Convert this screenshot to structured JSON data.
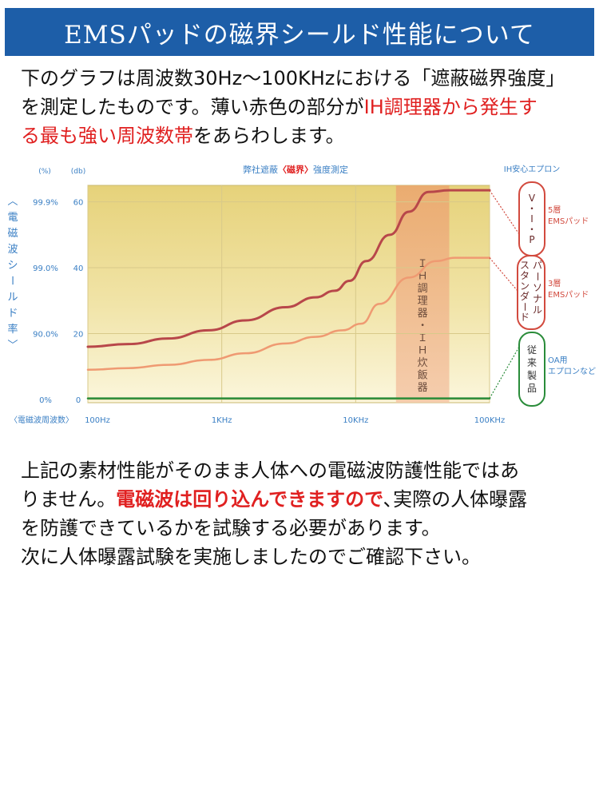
{
  "banner": {
    "title": "EMSパッドの磁界シールド性能について"
  },
  "intro": {
    "line1": "下のグラフは周波数30Hz～100KHzにおける「遮蔽磁界強度」",
    "line2_a": "を測定したものです。薄い赤色の部分が",
    "line2_b": "IH調理器から発生す",
    "line3_a": "る最も強い周波数帯",
    "line3_b": "をあらわします。"
  },
  "outro": {
    "line1": "上記の素材性能がそのまま人体への電磁波防護性能ではあ",
    "line2_a": "りません。",
    "line2_b": "電磁波は回り込んできますので",
    "line2_c": "､実際の人体曝露",
    "line3": "を防護できているかを試験する必要があります。",
    "line4": "次に人体曝露試験を実施しましたのでご確認下さい。"
  },
  "chart_data": {
    "type": "line",
    "title_a": "弊社遮蔽",
    "title_b": "〈磁界〉",
    "title_c": "強度測定",
    "left_axis_unit": "(%)",
    "right_axis_unit": "(db)",
    "ylabel_chars": [
      "〈",
      "電",
      "磁",
      "波",
      "シ",
      "ー",
      "ル",
      "ド",
      "率",
      "〉"
    ],
    "xlabel": "〈電磁波周波数〉",
    "x_ticks": [
      "100Hz",
      "1KHz",
      "10KHz",
      "100KHz"
    ],
    "x_tick_values": [
      100,
      1000,
      10000,
      100000
    ],
    "y_ticks_db": [
      0,
      20,
      40,
      60
    ],
    "y_ticks_pct": [
      "0%",
      "90.0%",
      "99.0%",
      "99.9%"
    ],
    "xlim": [
      100,
      100000
    ],
    "ylim": [
      -1,
      65
    ],
    "band": {
      "label_chars": [
        "Ｉ",
        "Ｈ",
        "調",
        "理",
        "器",
        "・",
        "Ｉ",
        "Ｈ",
        "炊",
        "飯",
        "器"
      ],
      "x_from": 20000,
      "x_to": 50000
    },
    "legend_title": "IH安心エプロン",
    "series": [
      {
        "name": "5層 EMSパッド",
        "badge": "V・I・P",
        "badge_chars": [
          "V",
          "・",
          "I",
          "・",
          "P"
        ],
        "color": "#b8474a",
        "x": [
          100,
          200,
          400,
          800,
          1500,
          3000,
          5000,
          7000,
          9000,
          12000,
          18000,
          25000,
          35000,
          50000,
          100000
        ],
        "values": [
          16,
          16.8,
          18.5,
          21,
          24,
          28,
          31,
          33,
          36,
          42,
          50,
          57,
          63,
          63.5,
          63.5
        ]
      },
      {
        "name": "3層 EMSパッド",
        "badge": "パーソナルスタンダード",
        "badge_col1": [
          "パ",
          "ー",
          "ソ",
          "ナ",
          "ル"
        ],
        "badge_col2": [
          "ス",
          "タ",
          "ン",
          "ダ",
          "ー",
          "ド"
        ],
        "color": "#ef9a72",
        "x": [
          100,
          200,
          400,
          800,
          1500,
          3000,
          5000,
          8000,
          11000,
          15000,
          25000,
          40000,
          55000,
          100000
        ],
        "values": [
          9,
          9.5,
          10.5,
          12,
          14,
          17,
          19,
          21,
          23,
          29,
          37,
          42,
          43,
          43
        ]
      },
      {
        "name": "OA用 エプロンなど",
        "badge": "従来製品",
        "badge_chars": [
          "従",
          "来",
          "製",
          "品"
        ],
        "color": "#2a8c3a",
        "x": [
          100,
          100000
        ],
        "values": [
          0.3,
          0.3
        ]
      }
    ],
    "legend_labels": [
      {
        "l1": "5層",
        "l2": "EMSパッド"
      },
      {
        "l1": "3層",
        "l2": "EMSパッド"
      },
      {
        "l1": "OA用",
        "l2": "エプロンなど"
      }
    ]
  }
}
